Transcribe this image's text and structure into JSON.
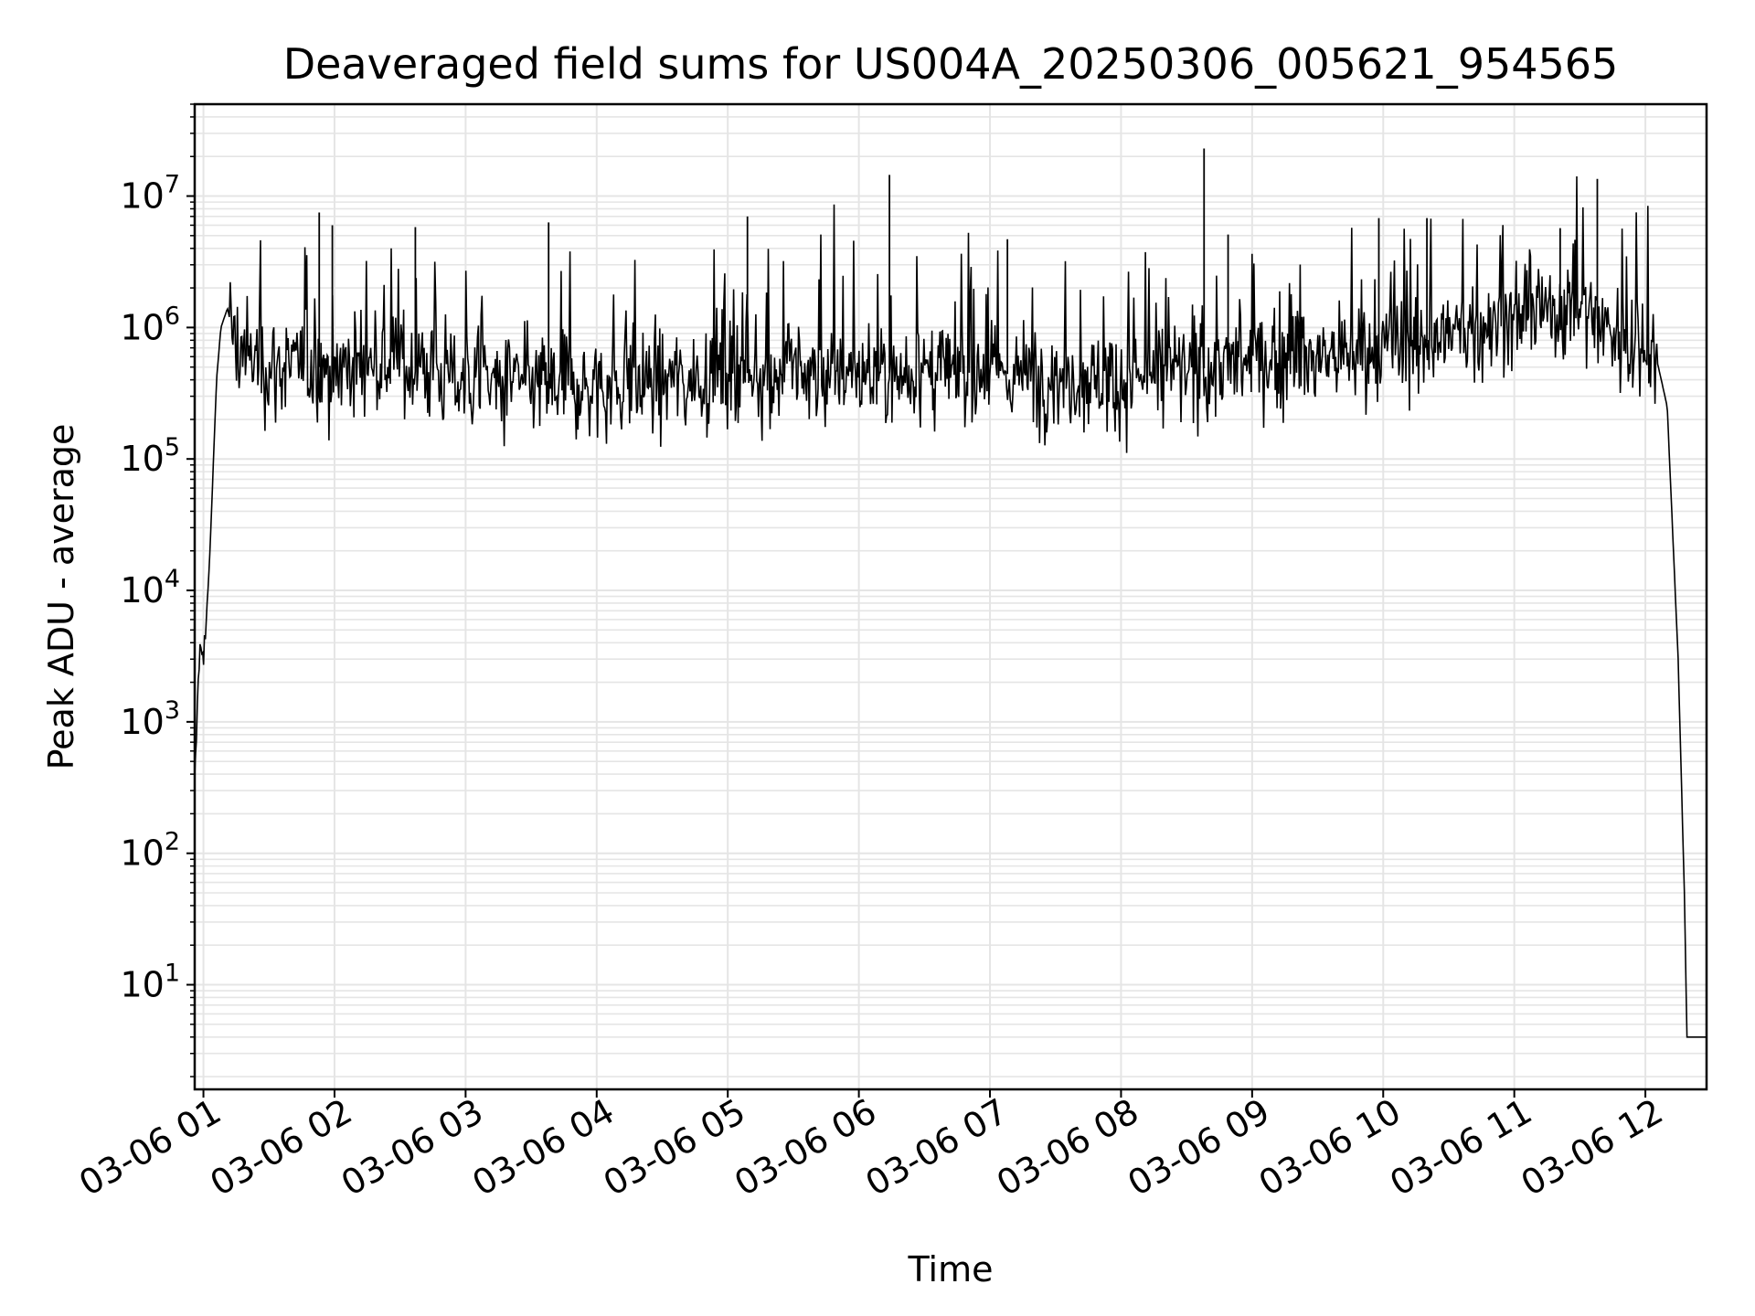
{
  "chart_data": {
    "type": "line",
    "title": "Deaveraged field sums for US004A_20250306_005621_954565",
    "xlabel": "Time",
    "ylabel": "Peak ADU - average",
    "y_scale": "log",
    "ylim": [
      1.6,
      50000000
    ],
    "xlim": [
      "2025-03-06 00:56",
      "2025-03-06 12:28"
    ],
    "grid": true,
    "line_color": "#000000",
    "grid_color": "#e5e5e5",
    "x_ticks": [
      "03-06 01",
      "03-06 02",
      "03-06 03",
      "03-06 04",
      "03-06 05",
      "03-06 06",
      "03-06 07",
      "03-06 08",
      "03-06 09",
      "03-06 10",
      "03-06 11",
      "03-06 12"
    ],
    "x_tick_times": [
      "2025-03-06 01:00",
      "2025-03-06 02:00",
      "2025-03-06 03:00",
      "2025-03-06 04:00",
      "2025-03-06 05:00",
      "2025-03-06 06:00",
      "2025-03-06 07:00",
      "2025-03-06 08:00",
      "2025-03-06 09:00",
      "2025-03-06 10:00",
      "2025-03-06 11:00",
      "2025-03-06 12:00"
    ],
    "y_ticks": [
      {
        "value": 10,
        "base": "10",
        "exp": "1"
      },
      {
        "value": 100,
        "base": "10",
        "exp": "2"
      },
      {
        "value": 1000,
        "base": "10",
        "exp": "3"
      },
      {
        "value": 10000,
        "base": "10",
        "exp": "4"
      },
      {
        "value": 100000,
        "base": "10",
        "exp": "5"
      },
      {
        "value": 1000000,
        "base": "10",
        "exp": "6"
      },
      {
        "value": 10000000,
        "base": "10",
        "exp": "7"
      }
    ],
    "series": [
      {
        "points": [
          [
            "2025-03-06 00:56",
            300
          ],
          [
            "2025-03-06 00:58",
            3000
          ],
          [
            "2025-03-06 01:01",
            4500
          ],
          [
            "2025-03-06 01:03",
            20000
          ],
          [
            "2025-03-06 01:06",
            400000
          ],
          [
            "2025-03-06 01:08",
            1000000
          ],
          [
            "2025-03-06 01:11",
            1400000
          ],
          [
            "2025-03-06 01:15",
            700000
          ],
          [
            "2025-03-06 01:30",
            500000
          ],
          [
            "2025-03-06 02:00",
            500000
          ],
          [
            "2025-03-06 02:30",
            550000
          ],
          [
            "2025-03-06 03:00",
            400000
          ],
          [
            "2025-03-06 04:00",
            350000
          ],
          [
            "2025-03-06 05:00",
            450000
          ],
          [
            "2025-03-06 06:00",
            450000
          ],
          [
            "2025-03-06 07:00",
            450000
          ],
          [
            "2025-03-06 08:00",
            400000
          ],
          [
            "2025-03-06 09:00",
            550000
          ],
          [
            "2025-03-06 10:00",
            650000
          ],
          [
            "2025-03-06 10:45",
            1000000
          ],
          [
            "2025-03-06 11:00",
            1200000
          ],
          [
            "2025-03-06 11:30",
            1500000
          ],
          [
            "2025-03-06 11:50",
            800000
          ],
          [
            "2025-03-06 12:04",
            700000
          ],
          [
            "2025-03-06 12:10",
            250000
          ],
          [
            "2025-03-06 12:15",
            3000
          ],
          [
            "2025-03-06 12:18",
            40
          ],
          [
            "2025-03-06 12:19",
            4
          ],
          [
            "2025-03-06 12:28",
            4
          ]
        ],
        "spikes": [
          [
            "2025-03-06 01:53",
            7500000
          ],
          [
            "2025-03-06 01:59",
            6000000
          ],
          [
            "2025-03-06 02:37",
            5800000
          ],
          [
            "2025-03-06 03:38",
            6300000
          ],
          [
            "2025-03-06 05:09",
            7000000
          ],
          [
            "2025-03-06 06:14",
            14500000
          ],
          [
            "2025-03-06 07:08",
            4700000
          ],
          [
            "2025-03-06 08:38",
            23000000
          ],
          [
            "2025-03-06 08:49",
            5100000
          ],
          [
            "2025-03-06 09:58",
            6800000
          ],
          [
            "2025-03-06 10:20",
            6800000
          ],
          [
            "2025-03-06 11:21",
            5700000
          ],
          [
            "2025-03-06 11:38",
            13500000
          ]
        ]
      }
    ]
  }
}
